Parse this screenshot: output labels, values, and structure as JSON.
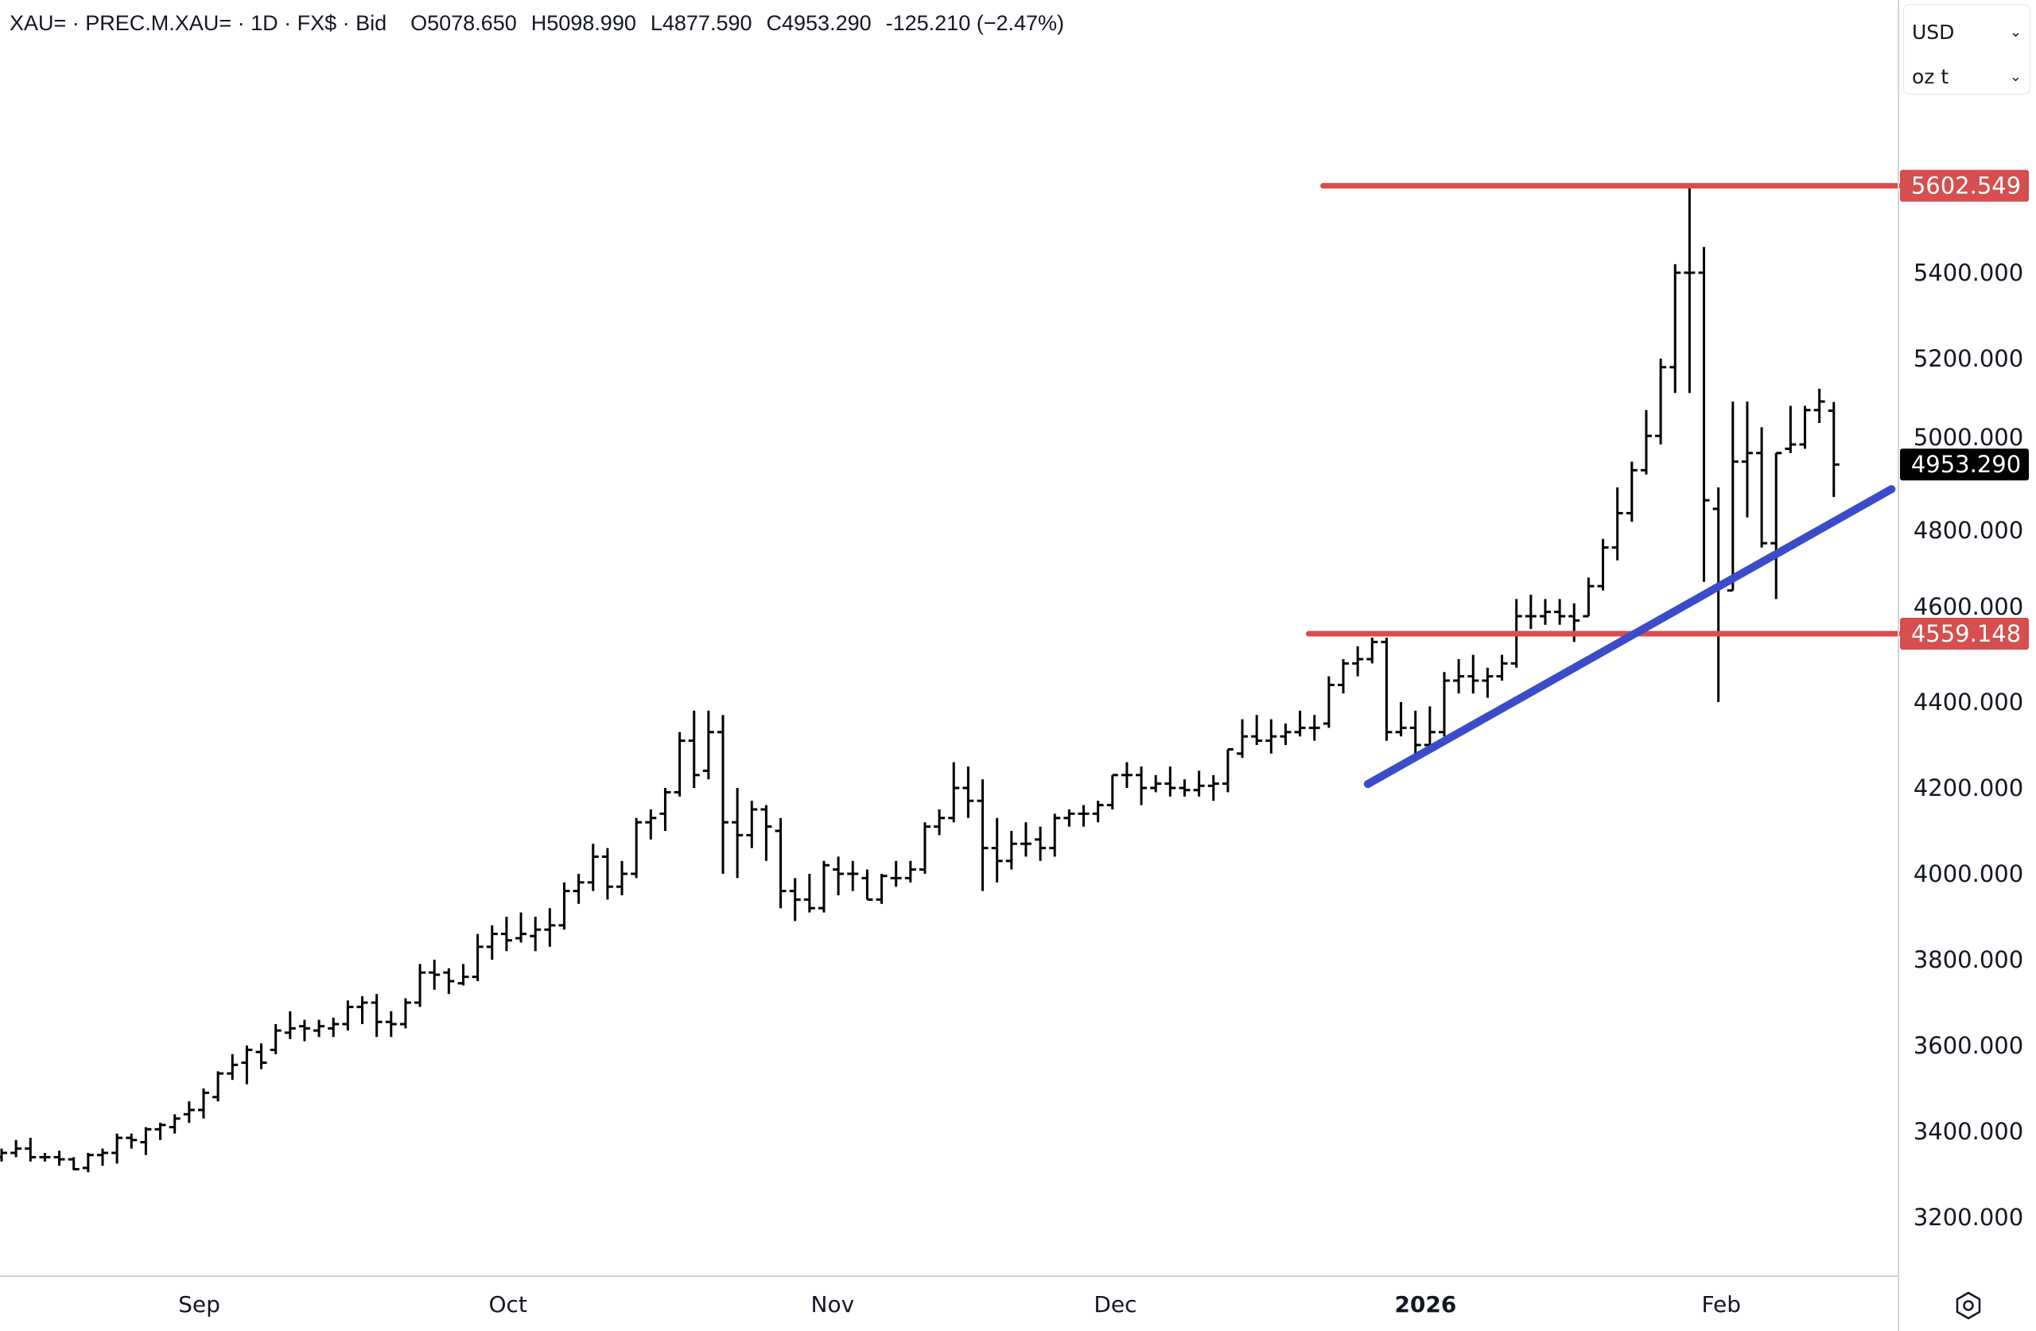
{
  "legend": {
    "symbol": "XAU= · PREC.M.XAU= · 1D · FX$ · Bid",
    "open": "O5078.650",
    "high": "H5098.990",
    "low": "L4877.590",
    "close": "C4953.290",
    "change": "-125.210 (−2.47%)"
  },
  "units": {
    "currency": "USD",
    "weight": "oz t"
  },
  "colors": {
    "bars": "#000000",
    "level": "#d64e4e",
    "trend": "#3b4cc8",
    "last": "#000000"
  },
  "icons": {
    "settings": "settings-icon",
    "chevron": "chevron-down-icon"
  },
  "chart_data": {
    "type": "ohlc",
    "title": "XAU= · PREC.M.XAU= · 1D · FX$ · Bid",
    "ylim": [
      3060,
      5750
    ],
    "y_ticks": [
      "3200.000",
      "3400.000",
      "3600.000",
      "3800.000",
      "4000.000",
      "4200.000",
      "4400.000",
      "4600.000",
      "4800.000",
      "5000.000",
      "5200.000",
      "5400.000"
    ],
    "x_labels": [
      {
        "label": "Sep",
        "index": 13.7,
        "bold": false
      },
      {
        "label": "Oct",
        "index": 35.1,
        "bold": false
      },
      {
        "label": "Nov",
        "index": 57.6,
        "bold": false
      },
      {
        "label": "Dec",
        "index": 77.2,
        "bold": false
      },
      {
        "label": "2026",
        "index": 98.7,
        "bold": true
      },
      {
        "label": "Feb",
        "index": 119.2,
        "bold": false
      }
    ],
    "levels": [
      {
        "price": 5602.549,
        "label": "5602.549",
        "from_index": 91.6
      },
      {
        "price": 4559.148,
        "label": "4559.148",
        "from_index": 90.6
      }
    ],
    "last_price": {
      "price": 4953.29,
      "label": "4953.290"
    },
    "trendline": [
      {
        "index": 94.7,
        "price": 4209
      },
      {
        "index": 131,
        "price": 4896
      }
    ],
    "ohlc": [
      [
        3340,
        3360,
        3330,
        3350
      ],
      [
        3350,
        3380,
        3340,
        3360
      ],
      [
        3360,
        3385,
        3330,
        3340
      ],
      [
        3340,
        3350,
        3330,
        3340
      ],
      [
        3340,
        3355,
        3320,
        3335
      ],
      [
        3335,
        3340,
        3310,
        3312
      ],
      [
        3315,
        3350,
        3305,
        3345
      ],
      [
        3345,
        3360,
        3320,
        3350
      ],
      [
        3350,
        3395,
        3325,
        3385
      ],
      [
        3385,
        3395,
        3360,
        3380
      ],
      [
        3375,
        3410,
        3345,
        3405
      ],
      [
        3405,
        3420,
        3380,
        3415
      ],
      [
        3410,
        3440,
        3395,
        3430
      ],
      [
        3440,
        3470,
        3420,
        3450
      ],
      [
        3450,
        3500,
        3430,
        3490
      ],
      [
        3480,
        3540,
        3470,
        3535
      ],
      [
        3535,
        3580,
        3520,
        3555
      ],
      [
        3560,
        3600,
        3510,
        3590
      ],
      [
        3585,
        3605,
        3545,
        3560
      ],
      [
        3590,
        3650,
        3580,
        3635
      ],
      [
        3630,
        3680,
        3615,
        3640
      ],
      [
        3645,
        3660,
        3610,
        3640
      ],
      [
        3635,
        3660,
        3620,
        3645
      ],
      [
        3640,
        3665,
        3620,
        3650
      ],
      [
        3650,
        3705,
        3635,
        3690
      ],
      [
        3690,
        3715,
        3650,
        3700
      ],
      [
        3700,
        3720,
        3620,
        3655
      ],
      [
        3655,
        3680,
        3620,
        3650
      ],
      [
        3650,
        3710,
        3640,
        3700
      ],
      [
        3700,
        3790,
        3690,
        3770
      ],
      [
        3770,
        3800,
        3730,
        3765
      ],
      [
        3770,
        3780,
        3720,
        3750
      ],
      [
        3745,
        3790,
        3740,
        3760
      ],
      [
        3760,
        3860,
        3750,
        3830
      ],
      [
        3830,
        3880,
        3800,
        3860
      ],
      [
        3860,
        3900,
        3820,
        3845
      ],
      [
        3850,
        3910,
        3840,
        3860
      ],
      [
        3855,
        3900,
        3820,
        3870
      ],
      [
        3870,
        3920,
        3830,
        3880
      ],
      [
        3880,
        3980,
        3870,
        3960
      ],
      [
        3960,
        4000,
        3930,
        3980
      ],
      [
        3980,
        4070,
        3960,
        4040
      ],
      [
        4040,
        4060,
        3940,
        3970
      ],
      [
        3970,
        4030,
        3950,
        4000
      ],
      [
        4000,
        4130,
        3990,
        4120
      ],
      [
        4120,
        4150,
        4080,
        4130
      ],
      [
        4140,
        4200,
        4100,
        4190
      ],
      [
        4190,
        4330,
        4180,
        4310
      ],
      [
        4310,
        4380,
        4200,
        4230
      ],
      [
        4240,
        4380,
        4220,
        4330
      ],
      [
        4330,
        4370,
        4000,
        4120
      ],
      [
        4120,
        4200,
        3990,
        4090
      ],
      [
        4090,
        4170,
        4060,
        4150
      ],
      [
        4150,
        4160,
        4030,
        4110
      ],
      [
        4100,
        4130,
        3920,
        3960
      ],
      [
        3960,
        3990,
        3890,
        3940
      ],
      [
        3940,
        4000,
        3910,
        3920
      ],
      [
        3920,
        4030,
        3910,
        4020
      ],
      [
        4010,
        4040,
        3950,
        4000
      ],
      [
        4000,
        4030,
        3960,
        4000
      ],
      [
        3990,
        4010,
        3940,
        3940
      ],
      [
        3940,
        4000,
        3930,
        3995
      ],
      [
        3990,
        4030,
        3970,
        3990
      ],
      [
        3990,
        4030,
        3980,
        4010
      ],
      [
        4010,
        4120,
        4000,
        4110
      ],
      [
        4110,
        4150,
        4090,
        4130
      ],
      [
        4130,
        4260,
        4120,
        4200
      ],
      [
        4200,
        4250,
        4130,
        4170
      ],
      [
        4170,
        4220,
        3960,
        4060
      ],
      [
        4060,
        4130,
        3980,
        4030
      ],
      [
        4030,
        4100,
        4010,
        4070
      ],
      [
        4070,
        4120,
        4040,
        4070
      ],
      [
        4080,
        4110,
        4030,
        4060
      ],
      [
        4060,
        4140,
        4040,
        4130
      ],
      [
        4130,
        4150,
        4110,
        4140
      ],
      [
        4140,
        4160,
        4110,
        4140
      ],
      [
        4140,
        4170,
        4120,
        4160
      ],
      [
        4160,
        4230,
        4150,
        4230
      ],
      [
        4230,
        4260,
        4200,
        4230
      ],
      [
        4230,
        4250,
        4160,
        4200
      ],
      [
        4200,
        4230,
        4190,
        4210
      ],
      [
        4210,
        4250,
        4180,
        4200
      ],
      [
        4200,
        4220,
        4180,
        4195
      ],
      [
        4195,
        4240,
        4180,
        4205
      ],
      [
        4205,
        4230,
        4170,
        4210
      ],
      [
        4210,
        4290,
        4190,
        4290
      ],
      [
        4280,
        4360,
        4270,
        4320
      ],
      [
        4320,
        4370,
        4300,
        4310
      ],
      [
        4310,
        4360,
        4280,
        4320
      ],
      [
        4320,
        4350,
        4300,
        4330
      ],
      [
        4330,
        4380,
        4320,
        4340
      ],
      [
        4340,
        4370,
        4310,
        4340
      ],
      [
        4350,
        4460,
        4340,
        4440
      ],
      [
        4440,
        4500,
        4420,
        4490
      ],
      [
        4490,
        4530,
        4460,
        4500
      ],
      [
        4500,
        4550,
        4490,
        4540
      ],
      [
        4540,
        4550,
        4310,
        4330
      ],
      [
        4330,
        4400,
        4320,
        4340
      ],
      [
        4340,
        4380,
        4270,
        4300
      ],
      [
        4300,
        4390,
        4290,
        4330
      ],
      [
        4330,
        4470,
        4320,
        4450
      ],
      [
        4450,
        4500,
        4420,
        4460
      ],
      [
        4460,
        4510,
        4420,
        4450
      ],
      [
        4450,
        4480,
        4410,
        4460
      ],
      [
        4460,
        4510,
        4450,
        4490
      ],
      [
        4490,
        4640,
        4480,
        4600
      ],
      [
        4600,
        4650,
        4570,
        4600
      ],
      [
        4600,
        4640,
        4580,
        4610
      ],
      [
        4610,
        4640,
        4580,
        4600
      ],
      [
        4600,
        4630,
        4540,
        4590
      ],
      [
        4600,
        4690,
        4600,
        4670
      ],
      [
        4670,
        4780,
        4660,
        4760
      ],
      [
        4760,
        4900,
        4730,
        4840
      ],
      [
        4840,
        4960,
        4820,
        4940
      ],
      [
        4940,
        5080,
        4930,
        5020
      ],
      [
        5020,
        5200,
        5000,
        5180
      ],
      [
        5180,
        5420,
        5120,
        5400
      ],
      [
        5400,
        5602,
        5120,
        5400
      ],
      [
        5400,
        5460,
        4680,
        4870
      ],
      [
        4850,
        4900,
        4400,
        4670
      ],
      [
        4660,
        5100,
        4660,
        4960
      ],
      [
        4960,
        5100,
        4830,
        4980
      ],
      [
        4980,
        5040,
        4760,
        4770
      ],
      [
        4770,
        4980,
        4640,
        4980
      ],
      [
        4990,
        5090,
        4980,
        5000
      ],
      [
        5000,
        5090,
        4990,
        5080
      ],
      [
        5080,
        5130,
        5050,
        5100
      ],
      [
        5078.65,
        5098.99,
        4877.59,
        4953.29
      ]
    ]
  }
}
